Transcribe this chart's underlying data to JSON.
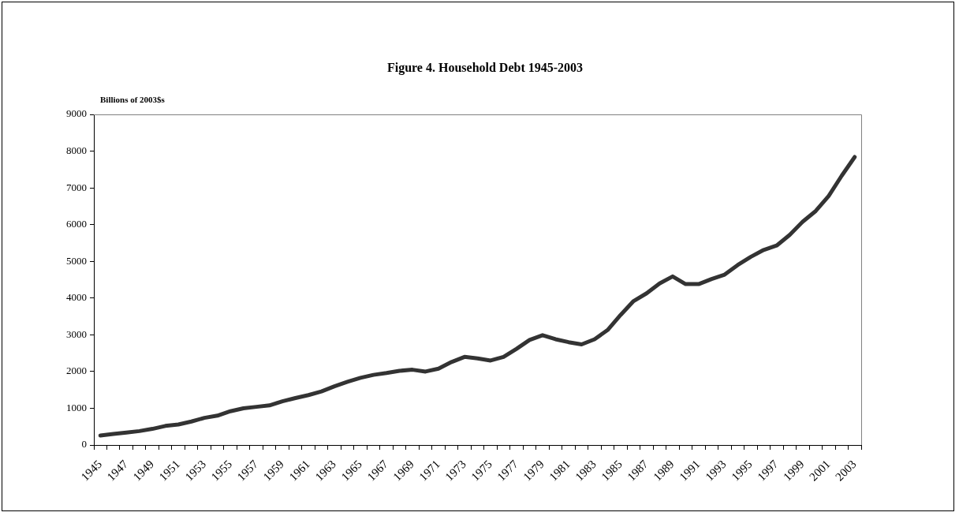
{
  "chart_data": {
    "type": "line",
    "title": "Figure 4. Household Debt 1945-2003",
    "ylabel": "Billions of 2003$s",
    "categories": [
      "1945",
      null,
      "1947",
      null,
      "1949",
      null,
      "1951",
      null,
      "1953",
      null,
      "1955",
      null,
      "1957",
      null,
      "1959",
      null,
      "1961",
      null,
      "1963",
      null,
      "1965",
      null,
      "1967",
      null,
      "1969",
      null,
      "1971",
      null,
      "1973",
      null,
      "1975",
      null,
      "1977",
      null,
      "1979",
      null,
      "1981",
      null,
      "1983",
      null,
      "1985",
      null,
      "1987",
      null,
      "1989",
      null,
      "1991",
      null,
      "1993",
      null,
      "1995",
      null,
      "1997",
      null,
      "1999",
      null,
      "2001",
      null,
      "2003"
    ],
    "series": [
      {
        "color": "#333333",
        "values": [
          260,
          300,
          340,
          380,
          440,
          520,
          560,
          640,
          740,
          800,
          920,
          1000,
          1040,
          1080,
          1190,
          1280,
          1360,
          1460,
          1600,
          1720,
          1830,
          1910,
          1960,
          2020,
          2050,
          2000,
          2080,
          2260,
          2400,
          2360,
          2300,
          2400,
          2620,
          2860,
          2990,
          2880,
          2800,
          2740,
          2880,
          3130,
          3540,
          3920,
          4130,
          4400,
          4590,
          4380,
          4380,
          4520,
          4640,
          4900,
          5120,
          5310,
          5430,
          5720,
          6080,
          6370,
          6780,
          7330,
          7840
        ]
      }
    ],
    "ylim": [
      0,
      9000
    ],
    "yticks": [
      0,
      1000,
      2000,
      3000,
      4000,
      5000,
      6000,
      7000,
      8000,
      9000
    ],
    "marker": "none",
    "line_style": "solid"
  }
}
